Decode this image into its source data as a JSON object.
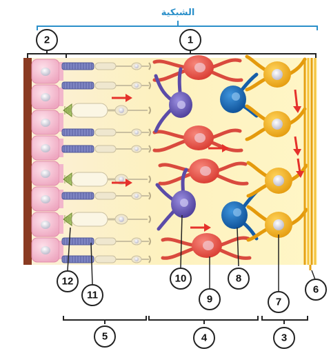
{
  "title": "الشبكية",
  "labels": [
    "1",
    "2",
    "3",
    "4",
    "5",
    "6",
    "7",
    "8",
    "9",
    "10",
    "11",
    "12"
  ],
  "colors": {
    "title_bracket": "#2a8fc9",
    "bracket": "#222222",
    "pigment_cell": "#f6c4d6",
    "choroid": "#8a3b22",
    "rod_outer": "#7f86c3",
    "receptor_inner": "#efe7cf",
    "bipolar": "#e9564a",
    "horizontal": "#6a5bb5",
    "amacrine": "#1e73c0",
    "ganglion": "#f1b21e",
    "background": "#fdf5c8"
  }
}
